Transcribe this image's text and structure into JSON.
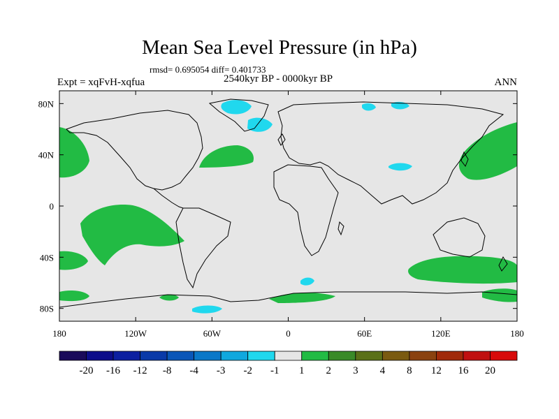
{
  "title": "Mean Sea Level Pressure (in hPa)",
  "stats": "rmsd= 0.695054 diff= 0.401733",
  "experiment": "Expt = xqFvH-xqfua",
  "period": "2540kyr BP - 0000kyr BP",
  "season": "ANN",
  "lat_labels": [
    "80N",
    "40N",
    "0",
    "40S",
    "80S"
  ],
  "lon_labels": [
    "180",
    "120W",
    "60W",
    "0",
    "60E",
    "120E",
    "180"
  ],
  "colorbar": {
    "labels": [
      "-20",
      "-16",
      "-12",
      "-8",
      "-4",
      "-3",
      "-2",
      "-1",
      "1",
      "2",
      "3",
      "4",
      "8",
      "12",
      "16",
      "20"
    ],
    "colors": [
      "#1a0a5a",
      "#0d0d8a",
      "#0c1fa0",
      "#0a3aa8",
      "#0a56b8",
      "#0a78c8",
      "#10a8de",
      "#20d8ee",
      "#e6e6e6",
      "#22bb44",
      "#3a8a28",
      "#5a7018",
      "#7a5a10",
      "#8a4210",
      "#a02a0a",
      "#c01010",
      "#d80a0a"
    ]
  },
  "colors": {
    "background": "#e6e6e6",
    "positive_anomaly": "#22bb44",
    "negative_anomaly": "#20d8ee",
    "coast": "#000000"
  }
}
